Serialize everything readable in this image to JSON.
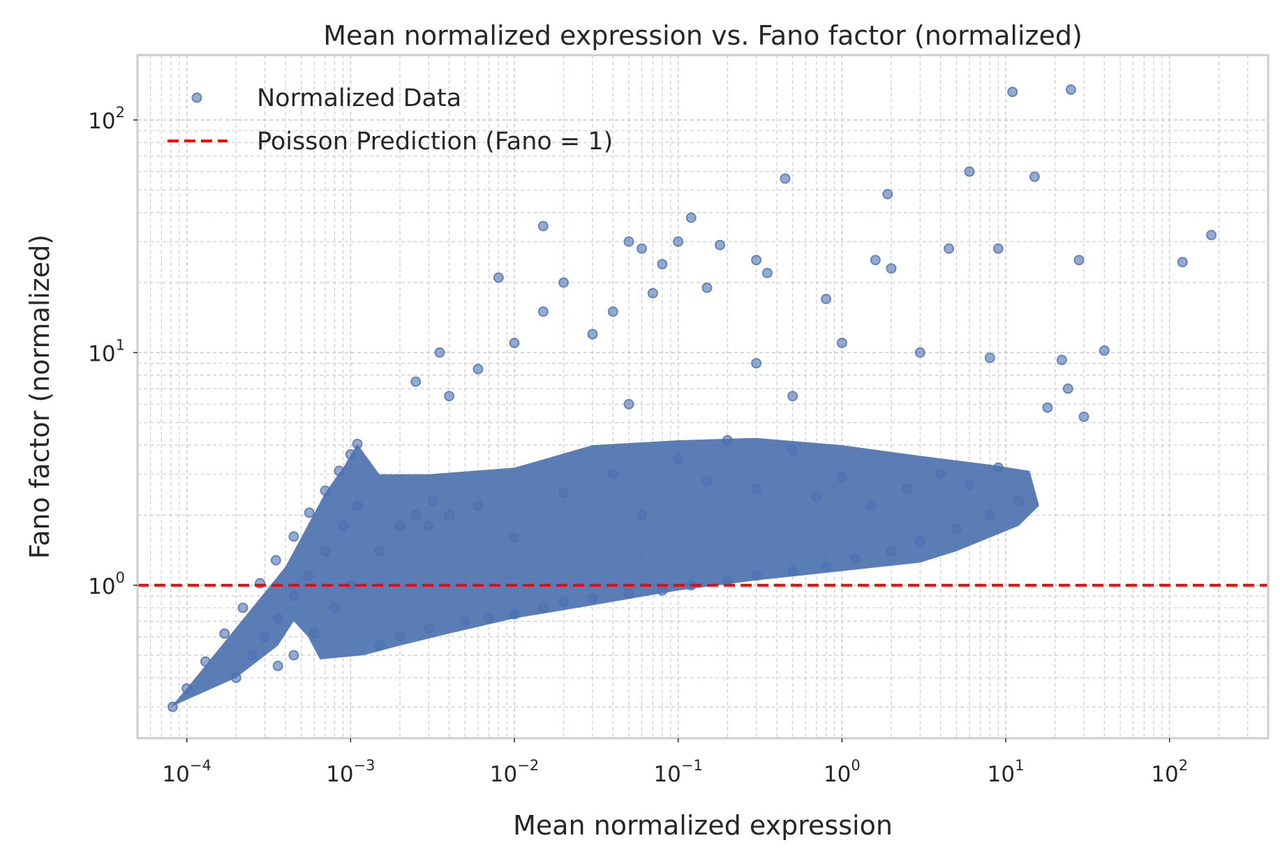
{
  "chart_data": {
    "type": "scatter",
    "title": "Mean normalized expression vs. Fano factor (normalized)",
    "xlabel": "Mean normalized expression",
    "ylabel": "Fano factor (normalized)",
    "xscale": "log",
    "yscale": "log",
    "xlim": [
      5e-05,
      400
    ],
    "ylim": [
      0.22,
      190
    ],
    "x_ticks": [
      {
        "value": 0.0001,
        "base": "10",
        "exp": "−4"
      },
      {
        "value": 0.001,
        "base": "10",
        "exp": "−3"
      },
      {
        "value": 0.01,
        "base": "10",
        "exp": "−2"
      },
      {
        "value": 0.1,
        "base": "10",
        "exp": "−1"
      },
      {
        "value": 1,
        "base": "10",
        "exp": "0"
      },
      {
        "value": 10,
        "base": "10",
        "exp": "1"
      },
      {
        "value": 100,
        "base": "10",
        "exp": "2"
      }
    ],
    "y_ticks": [
      {
        "value": 1,
        "base": "10",
        "exp": "0"
      },
      {
        "value": 10,
        "base": "10",
        "exp": "1"
      },
      {
        "value": 100,
        "base": "10",
        "exp": "2"
      }
    ],
    "grid": "major and minor, dashed",
    "legend_position": "top-left",
    "colors": {
      "points": "#4c72b0",
      "reference_line": "#ff0000",
      "grid": "#cccccc",
      "frame": "#cccccc"
    },
    "series": [
      {
        "name": "Normalized Data",
        "kind": "scatter",
        "points": [
          [
            8.2e-05,
            0.3
          ],
          [
            0.0001,
            0.36
          ],
          [
            0.00013,
            0.47
          ],
          [
            0.00017,
            0.62
          ],
          [
            0.00022,
            0.8
          ],
          [
            0.00028,
            1.02
          ],
          [
            0.00035,
            1.28
          ],
          [
            0.00045,
            1.62
          ],
          [
            0.00056,
            2.05
          ],
          [
            0.0007,
            2.55
          ],
          [
            0.00085,
            3.1
          ],
          [
            0.001,
            3.65
          ],
          [
            0.0011,
            4.05
          ],
          [
            0.0002,
            0.4
          ],
          [
            0.00025,
            0.5
          ],
          [
            0.0003,
            0.6
          ],
          [
            0.00036,
            0.72
          ],
          [
            0.00045,
            0.9
          ],
          [
            0.00055,
            1.1
          ],
          [
            0.0007,
            1.4
          ],
          [
            0.0009,
            1.8
          ],
          [
            0.0011,
            2.2
          ],
          [
            0.00036,
            0.45
          ],
          [
            0.00045,
            0.5
          ],
          [
            0.0006,
            0.62
          ],
          [
            0.0008,
            0.8
          ],
          [
            0.001,
            1.0
          ],
          [
            0.0015,
            1.4
          ],
          [
            0.002,
            1.8
          ],
          [
            0.0025,
            2.0
          ],
          [
            0.0032,
            2.3
          ],
          [
            0.004,
            2.0
          ],
          [
            0.0015,
            0.55
          ],
          [
            0.002,
            0.6
          ],
          [
            0.003,
            0.65
          ],
          [
            0.005,
            0.7
          ],
          [
            0.007,
            0.72
          ],
          [
            0.01,
            0.75
          ],
          [
            0.015,
            0.8
          ],
          [
            0.02,
            0.85
          ],
          [
            0.03,
            0.88
          ],
          [
            0.05,
            0.92
          ],
          [
            0.08,
            0.95
          ],
          [
            0.12,
            1.0
          ],
          [
            0.2,
            1.05
          ],
          [
            0.3,
            1.1
          ],
          [
            0.5,
            1.15
          ],
          [
            0.8,
            1.2
          ],
          [
            1.2,
            1.3
          ],
          [
            2.0,
            1.4
          ],
          [
            3.0,
            1.55
          ],
          [
            5.0,
            1.75
          ],
          [
            8.0,
            2.0
          ],
          [
            12.0,
            2.3
          ],
          [
            0.003,
            1.8
          ],
          [
            0.006,
            2.2
          ],
          [
            0.01,
            1.6
          ],
          [
            0.02,
            2.5
          ],
          [
            0.04,
            3.0
          ],
          [
            0.06,
            2.0
          ],
          [
            0.1,
            3.5
          ],
          [
            0.15,
            2.8
          ],
          [
            0.2,
            4.2
          ],
          [
            0.3,
            2.6
          ],
          [
            0.5,
            3.8
          ],
          [
            0.7,
            2.4
          ],
          [
            1.0,
            2.9
          ],
          [
            1.5,
            2.2
          ],
          [
            2.5,
            2.6
          ],
          [
            4.0,
            3.0
          ],
          [
            6.0,
            2.7
          ],
          [
            9.0,
            3.2
          ],
          [
            0.0025,
            7.5
          ],
          [
            0.004,
            6.5
          ],
          [
            0.006,
            8.5
          ],
          [
            0.01,
            11.0
          ],
          [
            0.015,
            15.0
          ],
          [
            0.02,
            20.0
          ],
          [
            0.03,
            12.0
          ],
          [
            0.04,
            15.0
          ],
          [
            0.05,
            30.0
          ],
          [
            0.06,
            28.0
          ],
          [
            0.07,
            18.0
          ],
          [
            0.08,
            24.0
          ],
          [
            0.1,
            30.0
          ],
          [
            0.12,
            38.0
          ],
          [
            0.15,
            19.0
          ],
          [
            0.18,
            29.0
          ],
          [
            0.3,
            25.0
          ],
          [
            0.35,
            22.0
          ],
          [
            0.45,
            56.0
          ],
          [
            0.8,
            17.0
          ],
          [
            1.6,
            25.0
          ],
          [
            1.9,
            48.0
          ],
          [
            2.0,
            23.0
          ],
          [
            4.5,
            28.0
          ],
          [
            6.0,
            60.0
          ],
          [
            9.0,
            28.0
          ],
          [
            11.0,
            132.0
          ],
          [
            15.0,
            57.0
          ],
          [
            25.0,
            135.0
          ],
          [
            28.0,
            25.0
          ],
          [
            40.0,
            10.2
          ],
          [
            24.0,
            7.0
          ],
          [
            22.0,
            9.3
          ],
          [
            30.0,
            5.3
          ],
          [
            18.0,
            5.8
          ],
          [
            120.0,
            24.5
          ],
          [
            180.0,
            32.0
          ],
          [
            0.0035,
            10.0
          ],
          [
            0.008,
            21.0
          ],
          [
            0.015,
            35.0
          ],
          [
            0.3,
            9.0
          ],
          [
            1.0,
            11.0
          ],
          [
            3.0,
            10.0
          ],
          [
            8.0,
            9.5
          ],
          [
            0.05,
            6.0
          ],
          [
            0.5,
            6.5
          ]
        ]
      },
      {
        "name": "Poisson Prediction (Fano = 1)",
        "kind": "hline",
        "y": 1
      }
    ]
  }
}
